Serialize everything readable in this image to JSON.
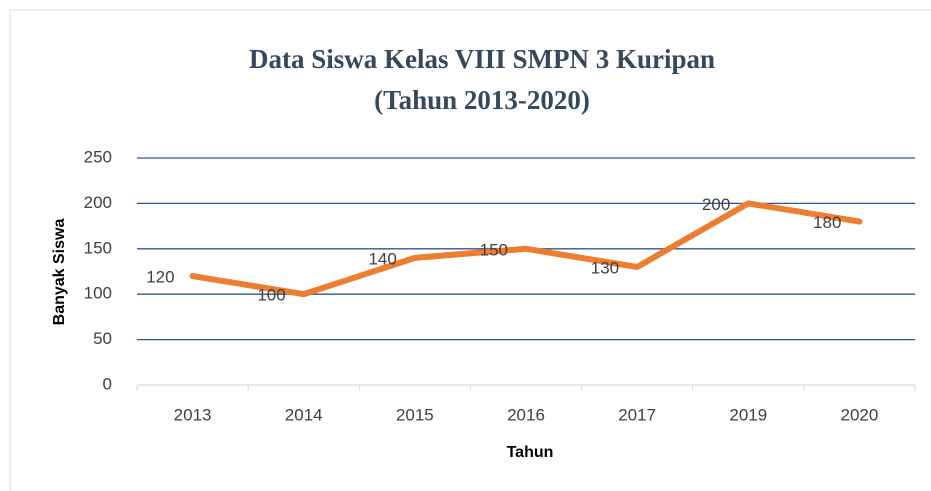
{
  "chart_data": {
    "type": "line",
    "title": "Data Siswa Kelas VIII SMPN 3 Kuripan",
    "subtitle": "(Tahun 2013-2020)",
    "x_label": "Tahun",
    "y_label": "Banyak Siswa",
    "categories": [
      "2013",
      "2014",
      "2015",
      "2016",
      "2017",
      "2019",
      "2020"
    ],
    "series": [
      {
        "name": "Banyak Siswa",
        "color": "#ed7d31",
        "values": [
          120,
          100,
          140,
          150,
          130,
          200,
          180
        ]
      }
    ],
    "ylim": [
      0,
      250
    ],
    "yticks": [
      0,
      50,
      100,
      150,
      200,
      250
    ],
    "grid": true,
    "grid_color": "#2f5597",
    "data_labels": true
  }
}
